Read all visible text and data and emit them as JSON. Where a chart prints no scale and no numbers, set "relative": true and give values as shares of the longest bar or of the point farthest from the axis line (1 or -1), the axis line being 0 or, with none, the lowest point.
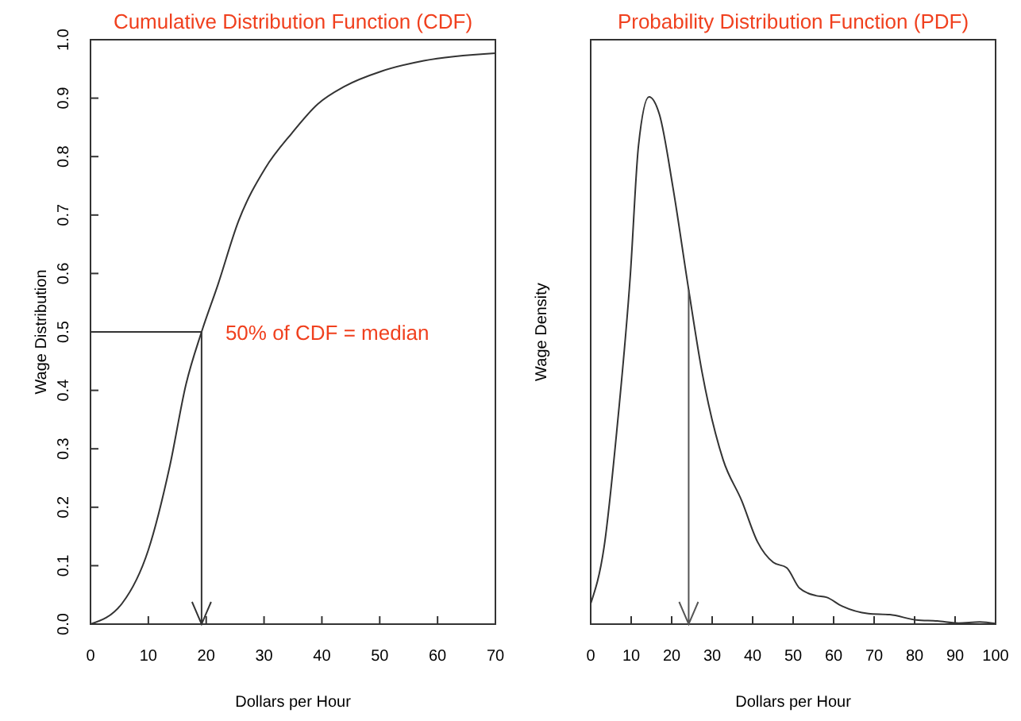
{
  "chart_data": [
    {
      "type": "line",
      "title": "Cumulative Distribution Function (CDF)",
      "xlabel": "Dollars per Hour",
      "ylabel": "Wage Distribution",
      "xlim": [
        0,
        70
      ],
      "xticks": [
        0,
        10,
        20,
        30,
        40,
        50,
        60,
        70
      ],
      "ylim": [
        0,
        1.0
      ],
      "yticks": [
        {
          "value": 0,
          "label": "0.0"
        },
        0.1,
        0.2,
        0.3,
        0.4,
        0.5,
        0.6,
        0.7,
        0.8,
        0.9,
        {
          "value": 1,
          "label": "1.0"
        }
      ],
      "annotations": [
        {
          "text": "50% of CDF = median",
          "x": 19.2,
          "y": 0.5
        }
      ],
      "series": [
        {
          "color": "#333333",
          "x": [
            0,
            5.5,
            10,
            13.7,
            16.5,
            19.2,
            22,
            25.6,
            30.2,
            34.8,
            39.3,
            43.9,
            50.3,
            57.6,
            70
          ],
          "values": [
            0,
            0.036,
            0.127,
            0.27,
            0.41,
            0.5,
            0.58,
            0.69,
            0.78,
            0.84,
            0.89,
            0.92,
            0.946,
            0.964,
            0.977
          ]
        }
      ],
      "ref_lines": [
        {
          "axis": "y",
          "value": 0.5,
          "color": "#333333"
        },
        {
          "axis": "x",
          "value": 19.2,
          "color": "#333333"
        }
      ]
    },
    {
      "type": "line",
      "relative": true,
      "title": "Probability Distribution Function (PDF)",
      "xlabel": "Dollars per Hour",
      "ylabel": "Wage Density",
      "xlim": [
        0,
        100
      ],
      "xticks": [
        0,
        10,
        20,
        30,
        40,
        50,
        60,
        70,
        80,
        90,
        100
      ],
      "series": [
        {
          "color": "#333333",
          "x": [
            0,
            3.3,
            6.5,
            9.8,
            11.8,
            14.4,
            17,
            20.3,
            24.2,
            27.5,
            32.7,
            37.3,
            41.2,
            45.1,
            48.4,
            51.6,
            55.6,
            58.2,
            62.1,
            68.6,
            73.9,
            80.4,
            85.6,
            90.8,
            96.1,
            100
          ],
          "values": [
            0.039,
            0.146,
            0.371,
            0.663,
            0.907,
            1,
            0.966,
            0.829,
            0.634,
            0.478,
            0.312,
            0.234,
            0.156,
            0.117,
            0.107,
            0.068,
            0.054,
            0.051,
            0.034,
            0.02,
            0.018,
            0.008,
            0.006,
            0.002,
            0.004,
            0.001
          ]
        }
      ],
      "ref_lines": [
        {
          "axis": "x",
          "value": 24.2,
          "color": "#555555"
        }
      ]
    }
  ]
}
